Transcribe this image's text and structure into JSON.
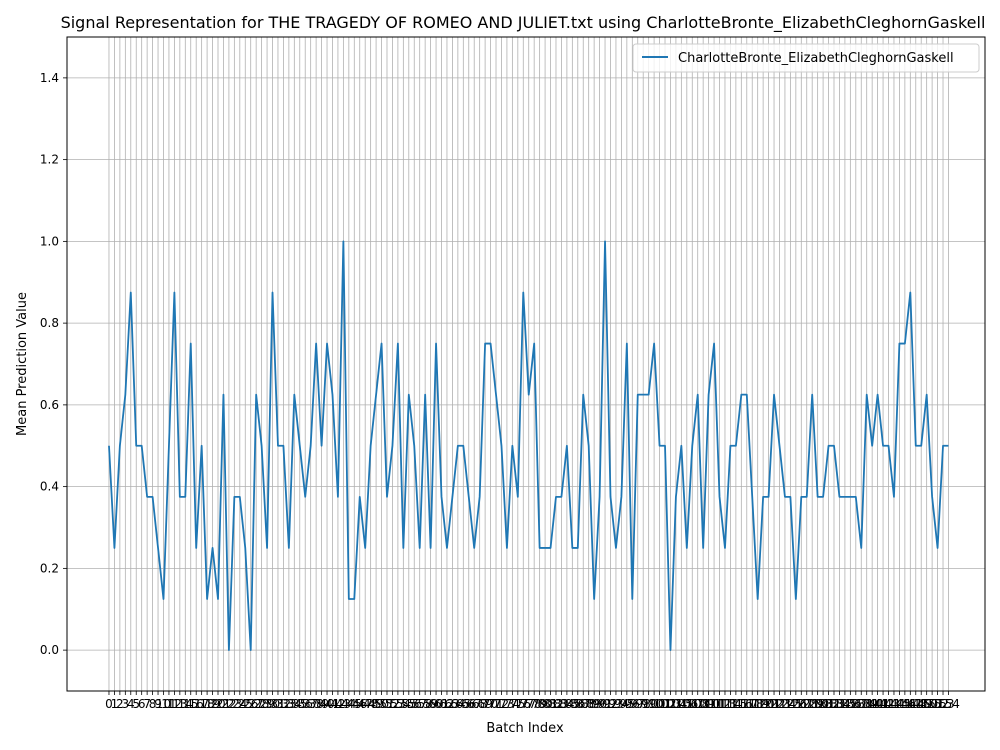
{
  "chart_data": {
    "type": "line",
    "title": "Signal Representation for THE TRAGEDY OF ROMEO AND JULIET.txt using CharlotteBronte_ElizabethCleghornGaskell",
    "xlabel": "Batch Index",
    "ylabel": "Mean Prediction Value",
    "ylim": [
      -0.1,
      1.5
    ],
    "xlim": [
      -7.7,
      160.7
    ],
    "yticks": [
      "0.0",
      "0.2",
      "0.4",
      "0.6",
      "0.8",
      "1.0",
      "1.2",
      "1.4"
    ],
    "ytick_values": [
      0,
      0.2,
      0.4,
      0.6,
      0.8,
      1.0,
      1.2,
      1.4
    ],
    "grid": true,
    "legend_position": "upper right",
    "series": [
      {
        "name": "CharlotteBronte_ElizabethCleghornGaskell",
        "color": "#1f77b4",
        "values": [
          0.5,
          0.25,
          0.5,
          0.625,
          0.875,
          0.5,
          0.5,
          0.375,
          0.375,
          0.25,
          0.125,
          0.5,
          0.875,
          0.375,
          0.375,
          0.75,
          0.25,
          0.5,
          0.125,
          0.25,
          0.125,
          0.625,
          0.0,
          0.375,
          0.375,
          0.25,
          0.0,
          0.625,
          0.5,
          0.25,
          0.875,
          0.5,
          0.5,
          0.25,
          0.625,
          0.5,
          0.375,
          0.5,
          0.75,
          0.5,
          0.75,
          0.625,
          0.375,
          1.0,
          0.125,
          0.125,
          0.375,
          0.25,
          0.5,
          0.625,
          0.75,
          0.375,
          0.5,
          0.75,
          0.25,
          0.625,
          0.5,
          0.25,
          0.625,
          0.25,
          0.75,
          0.375,
          0.25,
          0.375,
          0.5,
          0.5,
          0.375,
          0.25,
          0.375,
          0.75,
          0.75,
          0.625,
          0.5,
          0.25,
          0.5,
          0.375,
          0.875,
          0.625,
          0.75,
          0.25,
          0.25,
          0.25,
          0.375,
          0.375,
          0.5,
          0.25,
          0.25,
          0.625,
          0.5,
          0.125,
          0.375,
          1.0,
          0.375,
          0.25,
          0.375,
          0.75,
          0.125,
          0.625,
          0.625,
          0.625,
          0.75,
          0.5,
          0.5,
          0.0,
          0.375,
          0.5,
          0.25,
          0.5,
          0.625,
          0.25,
          0.625,
          0.75,
          0.375,
          0.25,
          0.5,
          0.5,
          0.625,
          0.625,
          0.375,
          0.125,
          0.375,
          0.375,
          0.625,
          0.5,
          0.375,
          0.375,
          0.125,
          0.375,
          0.375,
          0.625,
          0.375,
          0.375,
          0.5,
          0.5,
          0.375,
          0.375,
          0.375,
          0.375,
          0.25,
          0.625,
          0.5,
          0.625,
          0.5,
          0.5,
          0.375,
          0.75,
          0.75,
          0.875,
          0.5,
          0.5,
          0.625,
          0.375,
          0.25,
          0.5,
          0.5
        ]
      }
    ]
  }
}
